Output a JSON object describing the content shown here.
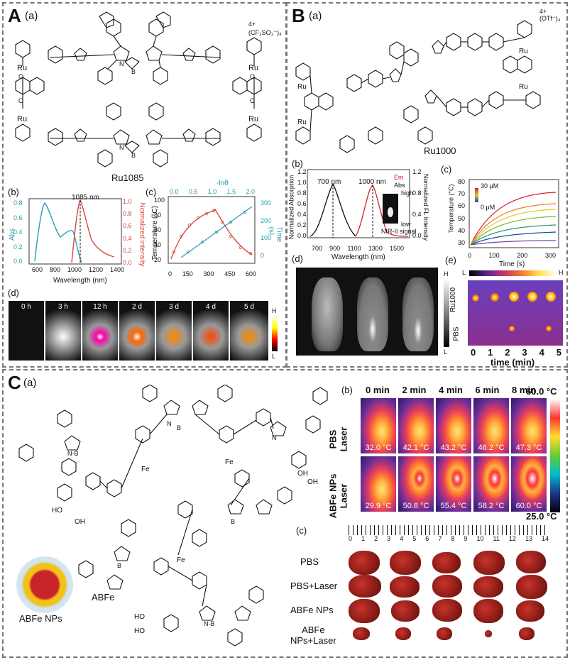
{
  "panelA": {
    "letter": "A",
    "a_label": "(a)",
    "compound": "Ru1085",
    "charge": "4+",
    "counterion": "(CF₃SO₃⁻)₄",
    "b_label": "(b)",
    "b_peak": "1085 nm",
    "b_ylabel_left": "Abs",
    "b_ylabel_right": "Normalized intensity",
    "b_xlabel": "Wavelength (nm)",
    "b_xticks": [
      "600",
      "800",
      "1000",
      "1200",
      "1400"
    ],
    "b_yticks_left": [
      "0.0",
      "0.2",
      "0.4",
      "0.6",
      "0.8"
    ],
    "b_yticks_right": [
      "0.0",
      "0.2",
      "0.4",
      "0.6",
      "0.8",
      "1.0"
    ],
    "c_label": "(c)",
    "c_top_label": "-lnθ",
    "c_top_ticks": [
      "0.0",
      "0.5",
      "1.0",
      "1.5",
      "2.0"
    ],
    "c_ylabel_left": "Temperature (°C)",
    "c_ylabel_right": "Time (s)",
    "c_xticks": [
      "0",
      "150",
      "300",
      "450",
      "600"
    ],
    "c_yticks_left": [
      "20",
      "40",
      "60",
      "80",
      "100"
    ],
    "c_yticks_right": [
      "0",
      "100",
      "200",
      "300"
    ],
    "d_label": "(d)",
    "d_times": [
      "0 h",
      "3 h",
      "12 h",
      "2 d",
      "3 d",
      "4 d",
      "5 d"
    ],
    "d_scale_high": "H",
    "d_scale_low": "L"
  },
  "panelB": {
    "letter": "B",
    "a_label": "(a)",
    "compound": "Ru1000",
    "charge": "4+",
    "counterion": "(OTf⁻)₄",
    "b_label": "(b)",
    "b_peak1": "700 nm",
    "b_peak2": "1000 nm",
    "b_legend_em": "Em",
    "b_legend_abs": "Abs",
    "b_ylabel_left": "Normalized Absorption",
    "b_ylabel_right": "Normalized FL Intensity",
    "b_xlabel": "Wavelength (nm)",
    "b_xticks": [
      "700",
      "900",
      "1100",
      "1300",
      "1500"
    ],
    "b_yticks_left": [
      "0.0",
      "0.2",
      "0.4",
      "0.6",
      "0.8",
      "1.0",
      "1.2"
    ],
    "b_yticks_right": [
      "0.0",
      "0.4",
      "0.8",
      "1.2"
    ],
    "b_inset_high": "high",
    "b_inset_low": "low",
    "b_inset_label": "NIR-II signal",
    "c_label": "(c)",
    "c_conc_high": "30 μM",
    "c_conc_low": "0 μM",
    "c_ylabel": "Temperature (°C)",
    "c_xlabel": "Time (s)",
    "c_xticks": [
      "0",
      "100",
      "200",
      "300"
    ],
    "c_yticks": [
      "30",
      "40",
      "50",
      "60",
      "70",
      "80"
    ],
    "d_label": "(d)",
    "d_scale_high": "H",
    "d_scale_low": "L",
    "e_label": "(e)",
    "e_scale_low": "L",
    "e_scale_high": "H",
    "e_row1": "Ru1000",
    "e_row2": "PBS",
    "e_times": [
      "0",
      "1",
      "2",
      "3",
      "4",
      "5"
    ],
    "e_xlabel": "time (min)"
  },
  "panelC": {
    "letter": "C",
    "a_label": "(a)",
    "compound": "ABFe",
    "np_label": "ABFe NPs",
    "b_label": "(b)",
    "b_times": [
      "0 min",
      "2 min",
      "4 min",
      "6 min",
      "8 min"
    ],
    "b_row1_label": "PBS\nLaser",
    "b_row1_temps": [
      "32.0 °C",
      "42.1 °C",
      "43.2 °C",
      "46.2 °C",
      "47.3 °C"
    ],
    "b_row2_label": "ABFe NPs\nLaser",
    "b_row2_temps": [
      "29.9 °C",
      "50.8 °C",
      "55.4 °C",
      "58.2 °C",
      "60.0 °C"
    ],
    "b_scale_high": "60.0 °C",
    "b_scale_low": "25.0 °C",
    "c_label": "(c)",
    "c_ruler": [
      "0",
      "1",
      "2",
      "3",
      "4",
      "5",
      "6",
      "7",
      "8",
      "9",
      "10",
      "11",
      "12",
      "13",
      "14"
    ],
    "c_groups": [
      "PBS",
      "PBS+Laser",
      "ABFe NPs",
      "ABFe\nNPs+Laser"
    ]
  }
}
